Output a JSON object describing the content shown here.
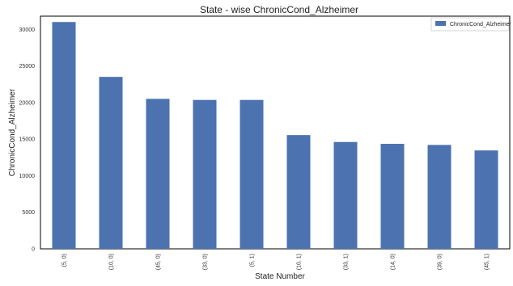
{
  "chart_data": {
    "type": "bar",
    "title": "State - wise ChronicCond_Alzheimer",
    "xlabel": "State Number",
    "ylabel": "ChronicCond_Alzheimer",
    "categories": [
      "(5, 0)",
      "(10, 0)",
      "(45, 0)",
      "(33, 0)",
      "(5, 1)",
      "(10, 1)",
      "(33, 1)",
      "(14, 0)",
      "(39, 0)",
      "(45, 1)"
    ],
    "series": [
      {
        "name": "ChronicCond_Alzheimer",
        "values": [
          31000,
          23500,
          20500,
          20350,
          20350,
          15550,
          14600,
          14350,
          14200,
          13450
        ]
      }
    ],
    "ylim": [
      0,
      31800
    ],
    "yticks": [
      0,
      5000,
      10000,
      15000,
      20000,
      25000,
      30000
    ],
    "grid": false,
    "legend": "top-right",
    "bar_color": "#4c72b0"
  }
}
